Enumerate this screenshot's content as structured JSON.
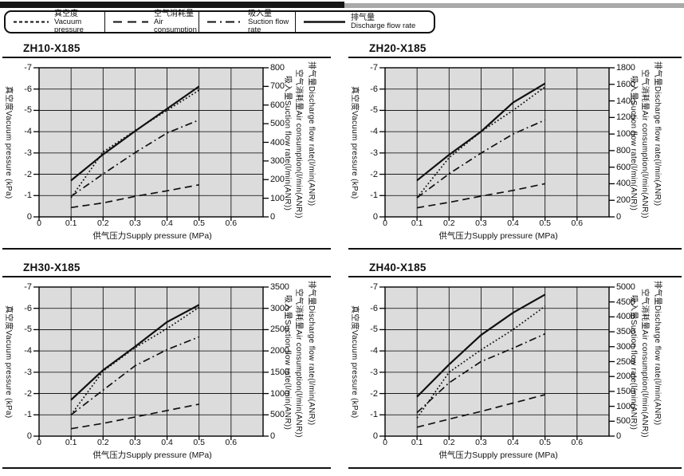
{
  "legend": {
    "items": [
      {
        "zh": "真空度",
        "en": "Vacuum pressure",
        "style": "dotted"
      },
      {
        "zh": "空气消耗量",
        "en": "Air consumption",
        "style": "dashed"
      },
      {
        "zh": "吸入量",
        "en": "Suction flow rate",
        "style": "dashdot"
      },
      {
        "zh": "排气量",
        "en": "Discharge flow rate",
        "style": "solid"
      }
    ]
  },
  "chart_data": [
    {
      "type": "line",
      "title": "ZH10-X185",
      "x": [
        0.1,
        0.2,
        0.3,
        0.4,
        0.5
      ],
      "x_axis": {
        "label": "供气压力Supply pressure (MPa)",
        "ticks": [
          0,
          0.1,
          0.2,
          0.3,
          0.4,
          0.5,
          0.6
        ],
        "max": 0.7
      },
      "left_axis": {
        "label": "真空度Vacuum pressure (kPa)",
        "ticks": [
          -7,
          -6,
          -5,
          -4,
          -3,
          -2,
          -1,
          0
        ],
        "min": -7,
        "max": 0
      },
      "right_axis": {
        "max": 800,
        "step": 100,
        "label_discharge": "排气量Discharge flow rate(l/min(ANR))",
        "label_air": "空气消耗量Air consumption(l/min(ANR))",
        "label_suction": "吸入量Suction flow rate(l/min(ANR))"
      },
      "series": [
        {
          "name": "discharge-flow-rate",
          "axis": "right",
          "style": "solid",
          "values": [
            195,
            335,
            460,
            580,
            700
          ]
        },
        {
          "name": "suction-flow-rate",
          "axis": "right",
          "style": "dashdot",
          "values": [
            110,
            230,
            345,
            450,
            520
          ]
        },
        {
          "name": "air-consumption",
          "axis": "right",
          "style": "dashed",
          "values": [
            50,
            75,
            110,
            140,
            172
          ]
        },
        {
          "name": "vacuum-pressure",
          "axis": "left",
          "style": "dotted",
          "values": [
            -0.9,
            -3.05,
            -4.05,
            -5.0,
            -5.95
          ]
        }
      ]
    },
    {
      "type": "line",
      "title": "ZH20-X185",
      "x": [
        0.1,
        0.2,
        0.3,
        0.4,
        0.5
      ],
      "x_axis": {
        "label": "供气压力Supply pressure (MPa)",
        "ticks": [
          0,
          0.1,
          0.2,
          0.3,
          0.4,
          0.5,
          0.6
        ],
        "max": 0.7
      },
      "left_axis": {
        "label": "真空度Vacuum pressure (kPa)",
        "ticks": [
          -7,
          -6,
          -5,
          -4,
          -3,
          -2,
          -1,
          0
        ],
        "min": -7,
        "max": 0
      },
      "right_axis": {
        "max": 1800,
        "step": 200,
        "label_discharge": "排气量Discharge flow rate(l/min(ANR))",
        "label_air": "空气消耗量Air consumption(l/min(ANR))",
        "label_suction": "吸入量Suction flow rate(l/min(ANR))"
      },
      "series": [
        {
          "name": "discharge-flow-rate",
          "axis": "right",
          "style": "solid",
          "values": [
            440,
            750,
            1030,
            1380,
            1610
          ]
        },
        {
          "name": "suction-flow-rate",
          "axis": "right",
          "style": "dashdot",
          "values": [
            230,
            520,
            770,
            1000,
            1170
          ]
        },
        {
          "name": "air-consumption",
          "axis": "right",
          "style": "dashed",
          "values": [
            110,
            175,
            250,
            320,
            400
          ]
        },
        {
          "name": "vacuum-pressure",
          "axis": "left",
          "style": "dotted",
          "values": [
            -0.9,
            -2.78,
            -4.0,
            -5.0,
            -6.1
          ]
        }
      ]
    },
    {
      "type": "line",
      "title": "ZH30-X185",
      "x": [
        0.1,
        0.2,
        0.3,
        0.4,
        0.5
      ],
      "x_axis": {
        "label": "供气压力Supply pressure (MPa)",
        "ticks": [
          0,
          0.1,
          0.2,
          0.3,
          0.4,
          0.5,
          0.6
        ],
        "max": 0.7
      },
      "left_axis": {
        "label": "真空度Vacuum pressure (kPa)",
        "ticks": [
          -7,
          -6,
          -5,
          -4,
          -3,
          -2,
          -1,
          0
        ],
        "min": -7,
        "max": 0
      },
      "right_axis": {
        "max": 3500,
        "step": 500,
        "label_discharge": "排气量Discharge flow rate(l/min(ANR))",
        "label_air": "空气消耗量Air consumption(l/min(ANR))",
        "label_suction": "吸入量Suction flow rate(l/min(ANR))"
      },
      "series": [
        {
          "name": "discharge-flow-rate",
          "axis": "right",
          "style": "solid",
          "values": [
            850,
            1550,
            2100,
            2680,
            3080
          ]
        },
        {
          "name": "suction-flow-rate",
          "axis": "right",
          "style": "dashdot",
          "values": [
            500,
            1080,
            1650,
            2030,
            2330
          ]
        },
        {
          "name": "air-consumption",
          "axis": "right",
          "style": "dashed",
          "values": [
            175,
            300,
            450,
            600,
            750
          ]
        },
        {
          "name": "vacuum-pressure",
          "axis": "left",
          "style": "dotted",
          "values": [
            -1.0,
            -3.05,
            -4.15,
            -5.05,
            -6.05
          ]
        }
      ]
    },
    {
      "type": "line",
      "title": "ZH40-X185",
      "x": [
        0.1,
        0.2,
        0.3,
        0.4,
        0.5
      ],
      "x_axis": {
        "label": "供气压力Supply pressure (MPa)",
        "ticks": [
          0,
          0.1,
          0.2,
          0.3,
          0.4,
          0.5,
          0.6
        ],
        "max": 0.7
      },
      "left_axis": {
        "label": "真空度Vacuum pressure (kPa)",
        "ticks": [
          -7,
          -6,
          -5,
          -4,
          -3,
          -2,
          -1,
          0
        ],
        "min": -7,
        "max": 0
      },
      "right_axis": {
        "max": 5000,
        "step": 500,
        "label_discharge": "排气量Discharge flow rate(l/min(ANR))",
        "label_air": "空气消耗量Air consumption(l/min(ANR))",
        "label_suction": "吸入量Suction flow rate(l/min(ANR))"
      },
      "series": [
        {
          "name": "discharge-flow-rate",
          "axis": "right",
          "style": "solid",
          "values": [
            1320,
            2400,
            3390,
            4140,
            4750
          ]
        },
        {
          "name": "suction-flow-rate",
          "axis": "right",
          "style": "dashdot",
          "values": [
            790,
            1790,
            2500,
            2950,
            3430
          ]
        },
        {
          "name": "air-consumption",
          "axis": "right",
          "style": "dashed",
          "values": [
            300,
            570,
            830,
            1110,
            1390
          ]
        },
        {
          "name": "vacuum-pressure",
          "axis": "left",
          "style": "dotted",
          "values": [
            -0.85,
            -3.0,
            -4.05,
            -5.0,
            -6.1
          ]
        }
      ]
    }
  ],
  "colors": {
    "ink": "#111111",
    "plot_bg": "#dcdcdc",
    "gray_bar": "#a9a9a9",
    "black_bar": "#161616"
  }
}
